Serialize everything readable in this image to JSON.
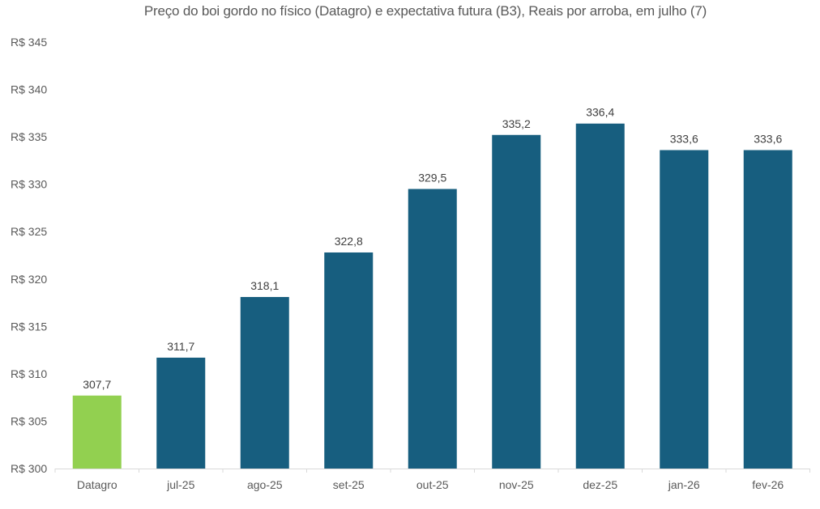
{
  "chart_data": {
    "type": "bar",
    "title": "Preço do boi gordo no físico (Datagro)  e expectativa futura (B3), Reais por arroba, em julho (7)",
    "xlabel": "",
    "ylabel": "",
    "ylim": [
      300,
      345
    ],
    "y_ticks": [
      300,
      305,
      310,
      315,
      320,
      325,
      330,
      335,
      340,
      345
    ],
    "y_tick_labels": [
      "R$ 300",
      "R$ 305",
      "R$ 310",
      "R$ 315",
      "R$ 320",
      "R$ 325",
      "R$ 330",
      "R$ 335",
      "R$ 340",
      "R$ 345"
    ],
    "grid": false,
    "legend": "none",
    "categories": [
      "Datagro",
      "jul-25",
      "ago-25",
      "set-25",
      "out-25",
      "nov-25",
      "dez-25",
      "jan-26",
      "fev-26"
    ],
    "values": [
      307.7,
      311.7,
      318.1,
      322.8,
      329.5,
      335.2,
      336.4,
      333.6,
      333.6
    ],
    "data_labels": [
      "307,7",
      "311,7",
      "318,1",
      "322,8",
      "329,5",
      "335,2",
      "336,4",
      "333,6",
      "333,6"
    ],
    "colors": [
      "#92D050",
      "#175E7F",
      "#175E7F",
      "#175E7F",
      "#175E7F",
      "#175E7F",
      "#175E7F",
      "#175E7F",
      "#175E7F"
    ],
    "axis_color": "#D9D9D9"
  }
}
